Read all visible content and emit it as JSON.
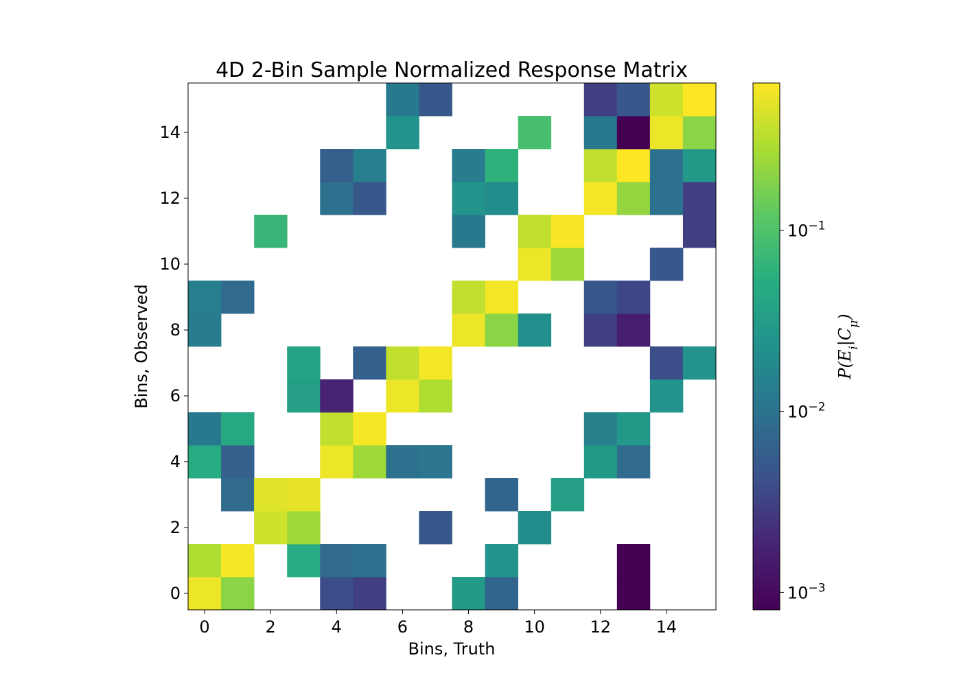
{
  "chart_data": {
    "type": "heatmap",
    "title": "4D 2-Bin Sample Normalized Response Matrix",
    "xlabel": "Bins, Truth",
    "ylabel": "Bins, Observed",
    "colorbar_label": "P(E_i|C_μ)",
    "colormap": "viridis",
    "color_scale": "log",
    "colorbar_range": [
      0.0008,
      0.65
    ],
    "colorbar_ticks": [
      {
        "value": 0.001,
        "base": "10",
        "exponent": "−3"
      },
      {
        "value": 0.01,
        "base": "10",
        "exponent": "−2"
      },
      {
        "value": 0.1,
        "base": "10",
        "exponent": "−1"
      }
    ],
    "xlim": [
      -0.5,
      15.5
    ],
    "ylim": [
      -0.5,
      15.5
    ],
    "x_ticks": [
      0,
      2,
      4,
      6,
      8,
      10,
      12,
      14
    ],
    "y_ticks": [
      0,
      2,
      4,
      6,
      8,
      10,
      12,
      14
    ],
    "empty_cell_color": "#ffffff",
    "cells": [
      {
        "x": 0,
        "y": 0,
        "value": 0.55
      },
      {
        "x": 1,
        "y": 0,
        "value": 0.2
      },
      {
        "x": 4,
        "y": 0,
        "value": 0.004
      },
      {
        "x": 5,
        "y": 0,
        "value": 0.003
      },
      {
        "x": 8,
        "y": 0,
        "value": 0.03
      },
      {
        "x": 9,
        "y": 0,
        "value": 0.007
      },
      {
        "x": 13,
        "y": 0,
        "value": 0.0008
      },
      {
        "x": 0,
        "y": 1,
        "value": 0.3
      },
      {
        "x": 1,
        "y": 1,
        "value": 0.6
      },
      {
        "x": 3,
        "y": 1,
        "value": 0.05
      },
      {
        "x": 4,
        "y": 1,
        "value": 0.008
      },
      {
        "x": 5,
        "y": 1,
        "value": 0.01
      },
      {
        "x": 9,
        "y": 1,
        "value": 0.025
      },
      {
        "x": 13,
        "y": 1,
        "value": 0.0008
      },
      {
        "x": 2,
        "y": 2,
        "value": 0.4
      },
      {
        "x": 3,
        "y": 2,
        "value": 0.25
      },
      {
        "x": 7,
        "y": 2,
        "value": 0.005
      },
      {
        "x": 10,
        "y": 2,
        "value": 0.02
      },
      {
        "x": 1,
        "y": 3,
        "value": 0.008
      },
      {
        "x": 2,
        "y": 3,
        "value": 0.48
      },
      {
        "x": 3,
        "y": 3,
        "value": 0.52
      },
      {
        "x": 9,
        "y": 3,
        "value": 0.007
      },
      {
        "x": 11,
        "y": 3,
        "value": 0.035
      },
      {
        "x": 0,
        "y": 4,
        "value": 0.05
      },
      {
        "x": 1,
        "y": 4,
        "value": 0.006
      },
      {
        "x": 4,
        "y": 4,
        "value": 0.55
      },
      {
        "x": 5,
        "y": 4,
        "value": 0.25
      },
      {
        "x": 6,
        "y": 4,
        "value": 0.01
      },
      {
        "x": 7,
        "y": 4,
        "value": 0.011
      },
      {
        "x": 12,
        "y": 4,
        "value": 0.03
      },
      {
        "x": 13,
        "y": 4,
        "value": 0.008
      },
      {
        "x": 0,
        "y": 5,
        "value": 0.012
      },
      {
        "x": 1,
        "y": 5,
        "value": 0.045
      },
      {
        "x": 4,
        "y": 5,
        "value": 0.35
      },
      {
        "x": 5,
        "y": 5,
        "value": 0.6
      },
      {
        "x": 12,
        "y": 5,
        "value": 0.015
      },
      {
        "x": 13,
        "y": 5,
        "value": 0.028
      },
      {
        "x": 3,
        "y": 6,
        "value": 0.035
      },
      {
        "x": 4,
        "y": 6,
        "value": 0.0018
      },
      {
        "x": 6,
        "y": 6,
        "value": 0.55
      },
      {
        "x": 7,
        "y": 6,
        "value": 0.3
      },
      {
        "x": 14,
        "y": 6,
        "value": 0.025
      },
      {
        "x": 3,
        "y": 7,
        "value": 0.04
      },
      {
        "x": 5,
        "y": 7,
        "value": 0.006
      },
      {
        "x": 6,
        "y": 7,
        "value": 0.35
      },
      {
        "x": 7,
        "y": 7,
        "value": 0.6
      },
      {
        "x": 14,
        "y": 7,
        "value": 0.004
      },
      {
        "x": 15,
        "y": 7,
        "value": 0.025
      },
      {
        "x": 0,
        "y": 8,
        "value": 0.013
      },
      {
        "x": 8,
        "y": 8,
        "value": 0.55
      },
      {
        "x": 9,
        "y": 8,
        "value": 0.2
      },
      {
        "x": 10,
        "y": 8,
        "value": 0.022
      },
      {
        "x": 12,
        "y": 8,
        "value": 0.003
      },
      {
        "x": 13,
        "y": 8,
        "value": 0.0016
      },
      {
        "x": 0,
        "y": 9,
        "value": 0.014
      },
      {
        "x": 1,
        "y": 9,
        "value": 0.008
      },
      {
        "x": 8,
        "y": 9,
        "value": 0.35
      },
      {
        "x": 9,
        "y": 9,
        "value": 0.58
      },
      {
        "x": 12,
        "y": 9,
        "value": 0.005
      },
      {
        "x": 13,
        "y": 9,
        "value": 0.0035
      },
      {
        "x": 10,
        "y": 10,
        "value": 0.55
      },
      {
        "x": 11,
        "y": 10,
        "value": 0.25
      },
      {
        "x": 14,
        "y": 10,
        "value": 0.005
      },
      {
        "x": 2,
        "y": 11,
        "value": 0.07
      },
      {
        "x": 8,
        "y": 11,
        "value": 0.012
      },
      {
        "x": 10,
        "y": 11,
        "value": 0.35
      },
      {
        "x": 11,
        "y": 11,
        "value": 0.62
      },
      {
        "x": 15,
        "y": 11,
        "value": 0.003
      },
      {
        "x": 4,
        "y": 12,
        "value": 0.01
      },
      {
        "x": 5,
        "y": 12,
        "value": 0.005
      },
      {
        "x": 8,
        "y": 12,
        "value": 0.025
      },
      {
        "x": 9,
        "y": 12,
        "value": 0.02
      },
      {
        "x": 12,
        "y": 12,
        "value": 0.58
      },
      {
        "x": 13,
        "y": 12,
        "value": 0.22
      },
      {
        "x": 14,
        "y": 12,
        "value": 0.01
      },
      {
        "x": 15,
        "y": 12,
        "value": 0.003
      },
      {
        "x": 4,
        "y": 13,
        "value": 0.006
      },
      {
        "x": 5,
        "y": 13,
        "value": 0.014
      },
      {
        "x": 8,
        "y": 13,
        "value": 0.013
      },
      {
        "x": 9,
        "y": 13,
        "value": 0.06
      },
      {
        "x": 12,
        "y": 13,
        "value": 0.35
      },
      {
        "x": 13,
        "y": 13,
        "value": 0.65
      },
      {
        "x": 14,
        "y": 13,
        "value": 0.01
      },
      {
        "x": 15,
        "y": 13,
        "value": 0.028
      },
      {
        "x": 6,
        "y": 14,
        "value": 0.025
      },
      {
        "x": 10,
        "y": 14,
        "value": 0.09
      },
      {
        "x": 12,
        "y": 14,
        "value": 0.012
      },
      {
        "x": 13,
        "y": 14,
        "value": 0.0008
      },
      {
        "x": 14,
        "y": 14,
        "value": 0.55
      },
      {
        "x": 15,
        "y": 14,
        "value": 0.2
      },
      {
        "x": 6,
        "y": 15,
        "value": 0.012
      },
      {
        "x": 7,
        "y": 15,
        "value": 0.005
      },
      {
        "x": 12,
        "y": 15,
        "value": 0.003
      },
      {
        "x": 13,
        "y": 15,
        "value": 0.005
      },
      {
        "x": 14,
        "y": 15,
        "value": 0.4
      },
      {
        "x": 15,
        "y": 15,
        "value": 0.65
      }
    ]
  }
}
